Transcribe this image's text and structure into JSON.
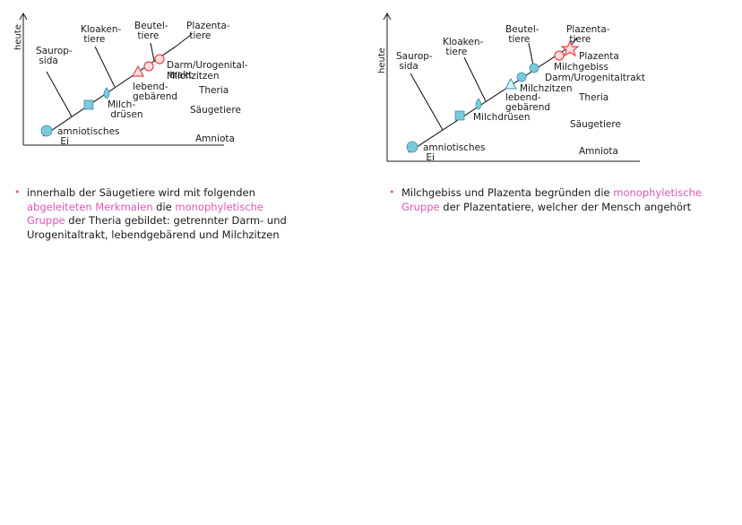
{
  "colors": {
    "line": "#1a1a1a",
    "blue": "#7cc8dc",
    "red": "#e04848",
    "highlight": "#e055b5"
  },
  "left": {
    "axis_label": "heute",
    "taxa": {
      "sauropsida": "Saurop-\n sida",
      "kloakentiere": "Kloaken-\n tiere",
      "beuteltiere": "Beutel-\n tiere",
      "plazentatiere": "Plazenta-\n tiere"
    },
    "traits": {
      "amnion": "amniotisches\n Ei",
      "milchdruesen": "Milch-\n drüsen",
      "lebendgebaerend": "lebend-\ngebärend",
      "darm": "Darm/Urogenital-\n trakt",
      "milchzitzen": "Milchzitzen"
    },
    "groups": {
      "theria": "Theria",
      "saeugetiere": "Säugetiere",
      "amniota": "Amniota"
    },
    "note_parts": [
      "innerhalb der Säugetiere wird mit folgenden ",
      "abgeleiteten Merkmalen",
      " die ",
      "monophyletische Gruppe",
      " der Theria gebildet: getrennter Darm- und Urogenitaltrakt, lebendgebärend und Milchzitzen"
    ]
  },
  "right": {
    "axis_label": "heute",
    "taxa": {
      "sauropsida": "Saurop-\n sida",
      "kloakentiere": "Kloaken-\n tiere",
      "beuteltiere": "Beutel-\n tiere",
      "plazentatiere": "Plazenta-\n tiere"
    },
    "traits": {
      "amnion": "amniotisches\n Ei",
      "milchdruesen": "Milchdrüsen",
      "lebendgebaerend": "lebend-\ngebärend",
      "milchzitzen": "Milchzitzen",
      "darm": "Darm/Urogenitaltrakt",
      "milchgebiss": "Milchgebiss",
      "plazenta": "Plazenta"
    },
    "groups": {
      "theria": "Theria",
      "saeugetiere": "Säugetiere",
      "amniota": "Amniota"
    },
    "note_parts": [
      "Milchgebiss und Plazenta begründen die ",
      "monophyletische Gruppe",
      " der Plazentatiere, welcher der Mensch angehört"
    ]
  }
}
